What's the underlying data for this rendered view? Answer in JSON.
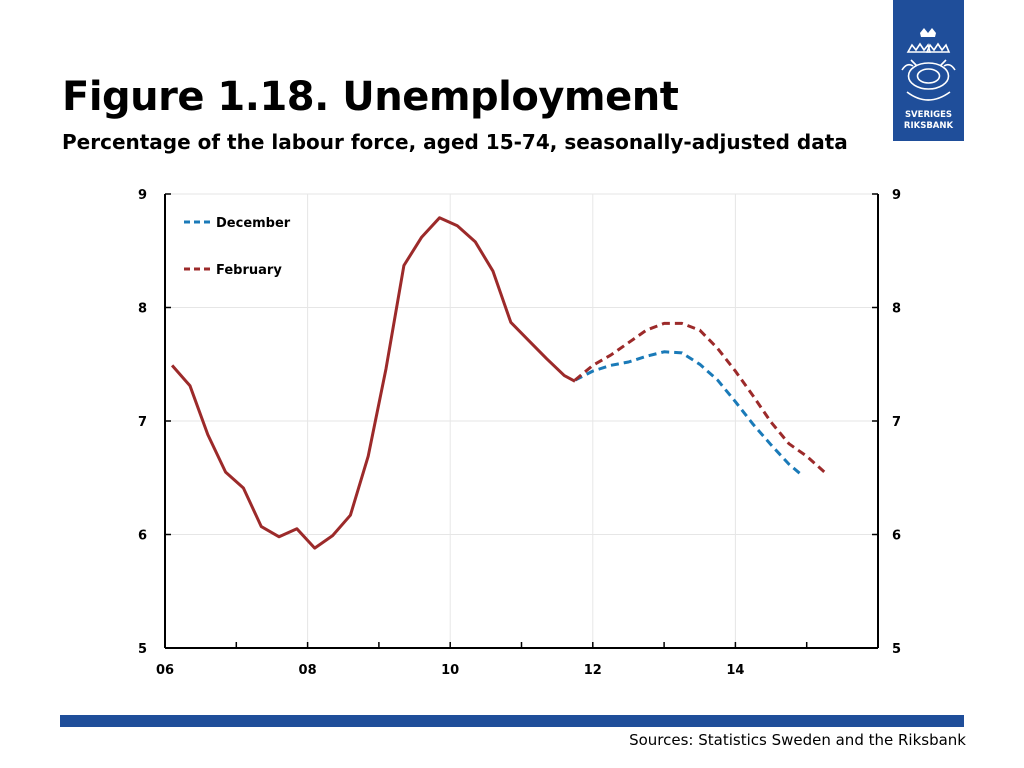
{
  "title": "Figure 1.18. Unemployment",
  "subtitle": "Percentage of the labour force, aged 15-74, seasonally-adjusted data",
  "source": "Sources: Statistics Sweden and the Riksbank",
  "logo": {
    "line1": "SVERIGES",
    "line2": "RIKSBANK"
  },
  "colors": {
    "brand": "#1f4e9a",
    "december": "#1a7ab8",
    "february": "#9c2a2a"
  },
  "chart_data": {
    "type": "line",
    "x_ticks": [
      {
        "value": 2006,
        "label": "06"
      },
      {
        "value": 2008,
        "label": "08"
      },
      {
        "value": 2010,
        "label": "10"
      },
      {
        "value": 2012,
        "label": "12"
      },
      {
        "value": 2014,
        "label": "14"
      }
    ],
    "xlim": [
      2006,
      2016
    ],
    "ylim": [
      5,
      9
    ],
    "y_ticks": [
      5,
      6,
      7,
      8,
      9
    ],
    "y_ticks_right": [
      5,
      6,
      7,
      8,
      9
    ],
    "grid": true,
    "legend_placement": "top-left",
    "series": [
      {
        "name": "December",
        "style": "dashed",
        "color": "#1a7ab8",
        "x": [
          2011.75,
          2012.0,
          2012.25,
          2012.5,
          2012.75,
          2013.0,
          2013.25,
          2013.5,
          2013.75,
          2014.0,
          2014.25,
          2014.5,
          2014.75,
          2014.9
        ],
        "y": [
          7.36,
          7.44,
          7.49,
          7.52,
          7.57,
          7.61,
          7.6,
          7.5,
          7.36,
          7.17,
          6.97,
          6.79,
          6.62,
          6.54
        ]
      },
      {
        "name": "February",
        "style": "dashed",
        "color": "#9c2a2a",
        "x": [
          2011.75,
          2012.0,
          2012.25,
          2012.5,
          2012.75,
          2013.0,
          2013.25,
          2013.5,
          2013.75,
          2014.0,
          2014.25,
          2014.5,
          2014.75,
          2015.0,
          2015.25
        ],
        "y": [
          7.36,
          7.49,
          7.58,
          7.69,
          7.8,
          7.86,
          7.86,
          7.8,
          7.64,
          7.44,
          7.22,
          6.99,
          6.8,
          6.69,
          6.55
        ]
      },
      {
        "name": "",
        "style": "solid",
        "color": "#9c2a2a",
        "x": [
          2006.1,
          2006.35,
          2006.6,
          2006.85,
          2007.1,
          2007.35,
          2007.6,
          2007.85,
          2008.1,
          2008.35,
          2008.6,
          2008.85,
          2009.1,
          2009.35,
          2009.6,
          2009.85,
          2010.1,
          2010.35,
          2010.6,
          2010.85,
          2011.1,
          2011.35,
          2011.6,
          2011.75
        ],
        "y": [
          7.49,
          7.31,
          6.88,
          6.55,
          6.41,
          6.07,
          5.98,
          6.05,
          5.88,
          5.99,
          6.17,
          6.69,
          7.46,
          8.37,
          8.62,
          8.79,
          8.72,
          8.58,
          8.32,
          7.87,
          7.71,
          7.55,
          7.4,
          7.35
        ]
      }
    ]
  }
}
